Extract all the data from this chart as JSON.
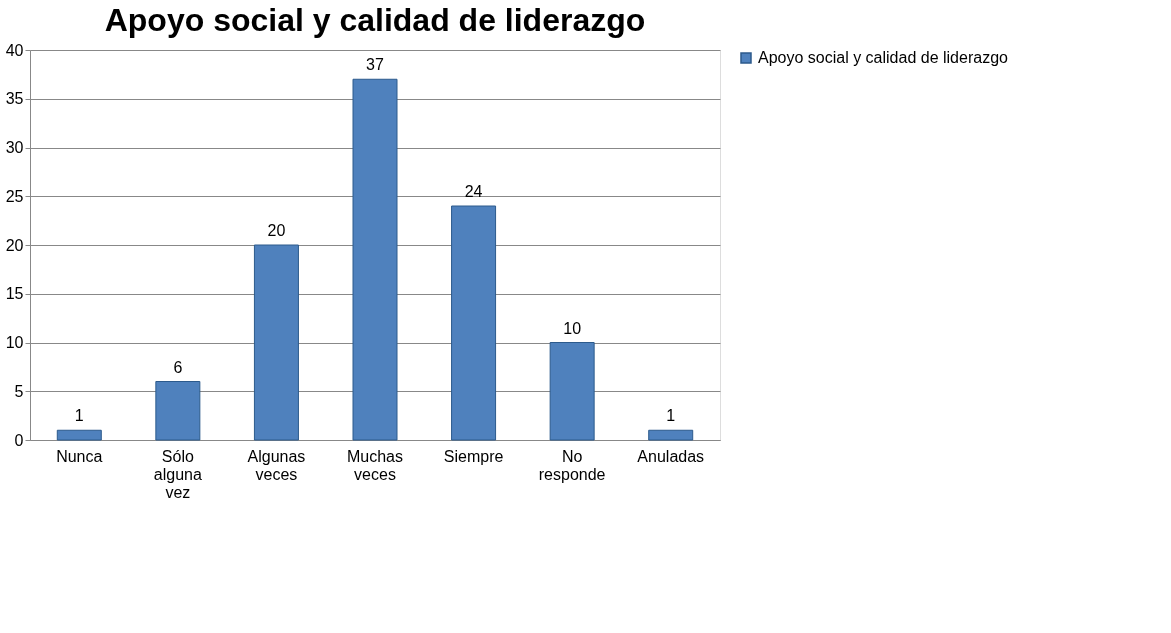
{
  "chart_data": {
    "type": "bar",
    "title": "Apoyo social y calidad de liderazgo",
    "categories": [
      "Nunca",
      "Sólo alguna vez",
      "Algunas veces",
      "Muchas veces",
      "Siempre",
      "No responde",
      "Anuladas"
    ],
    "series": [
      {
        "name": "Apoyo social y calidad de liderazgo",
        "color": "#4f81bd",
        "values": [
          1,
          6,
          20,
          37,
          24,
          10,
          1
        ]
      }
    ],
    "ylim": [
      0,
      40
    ],
    "yticks": [
      0,
      5,
      10,
      15,
      20,
      25,
      30,
      35,
      40
    ],
    "grid": "y",
    "legend": "right",
    "data_labels": true
  }
}
